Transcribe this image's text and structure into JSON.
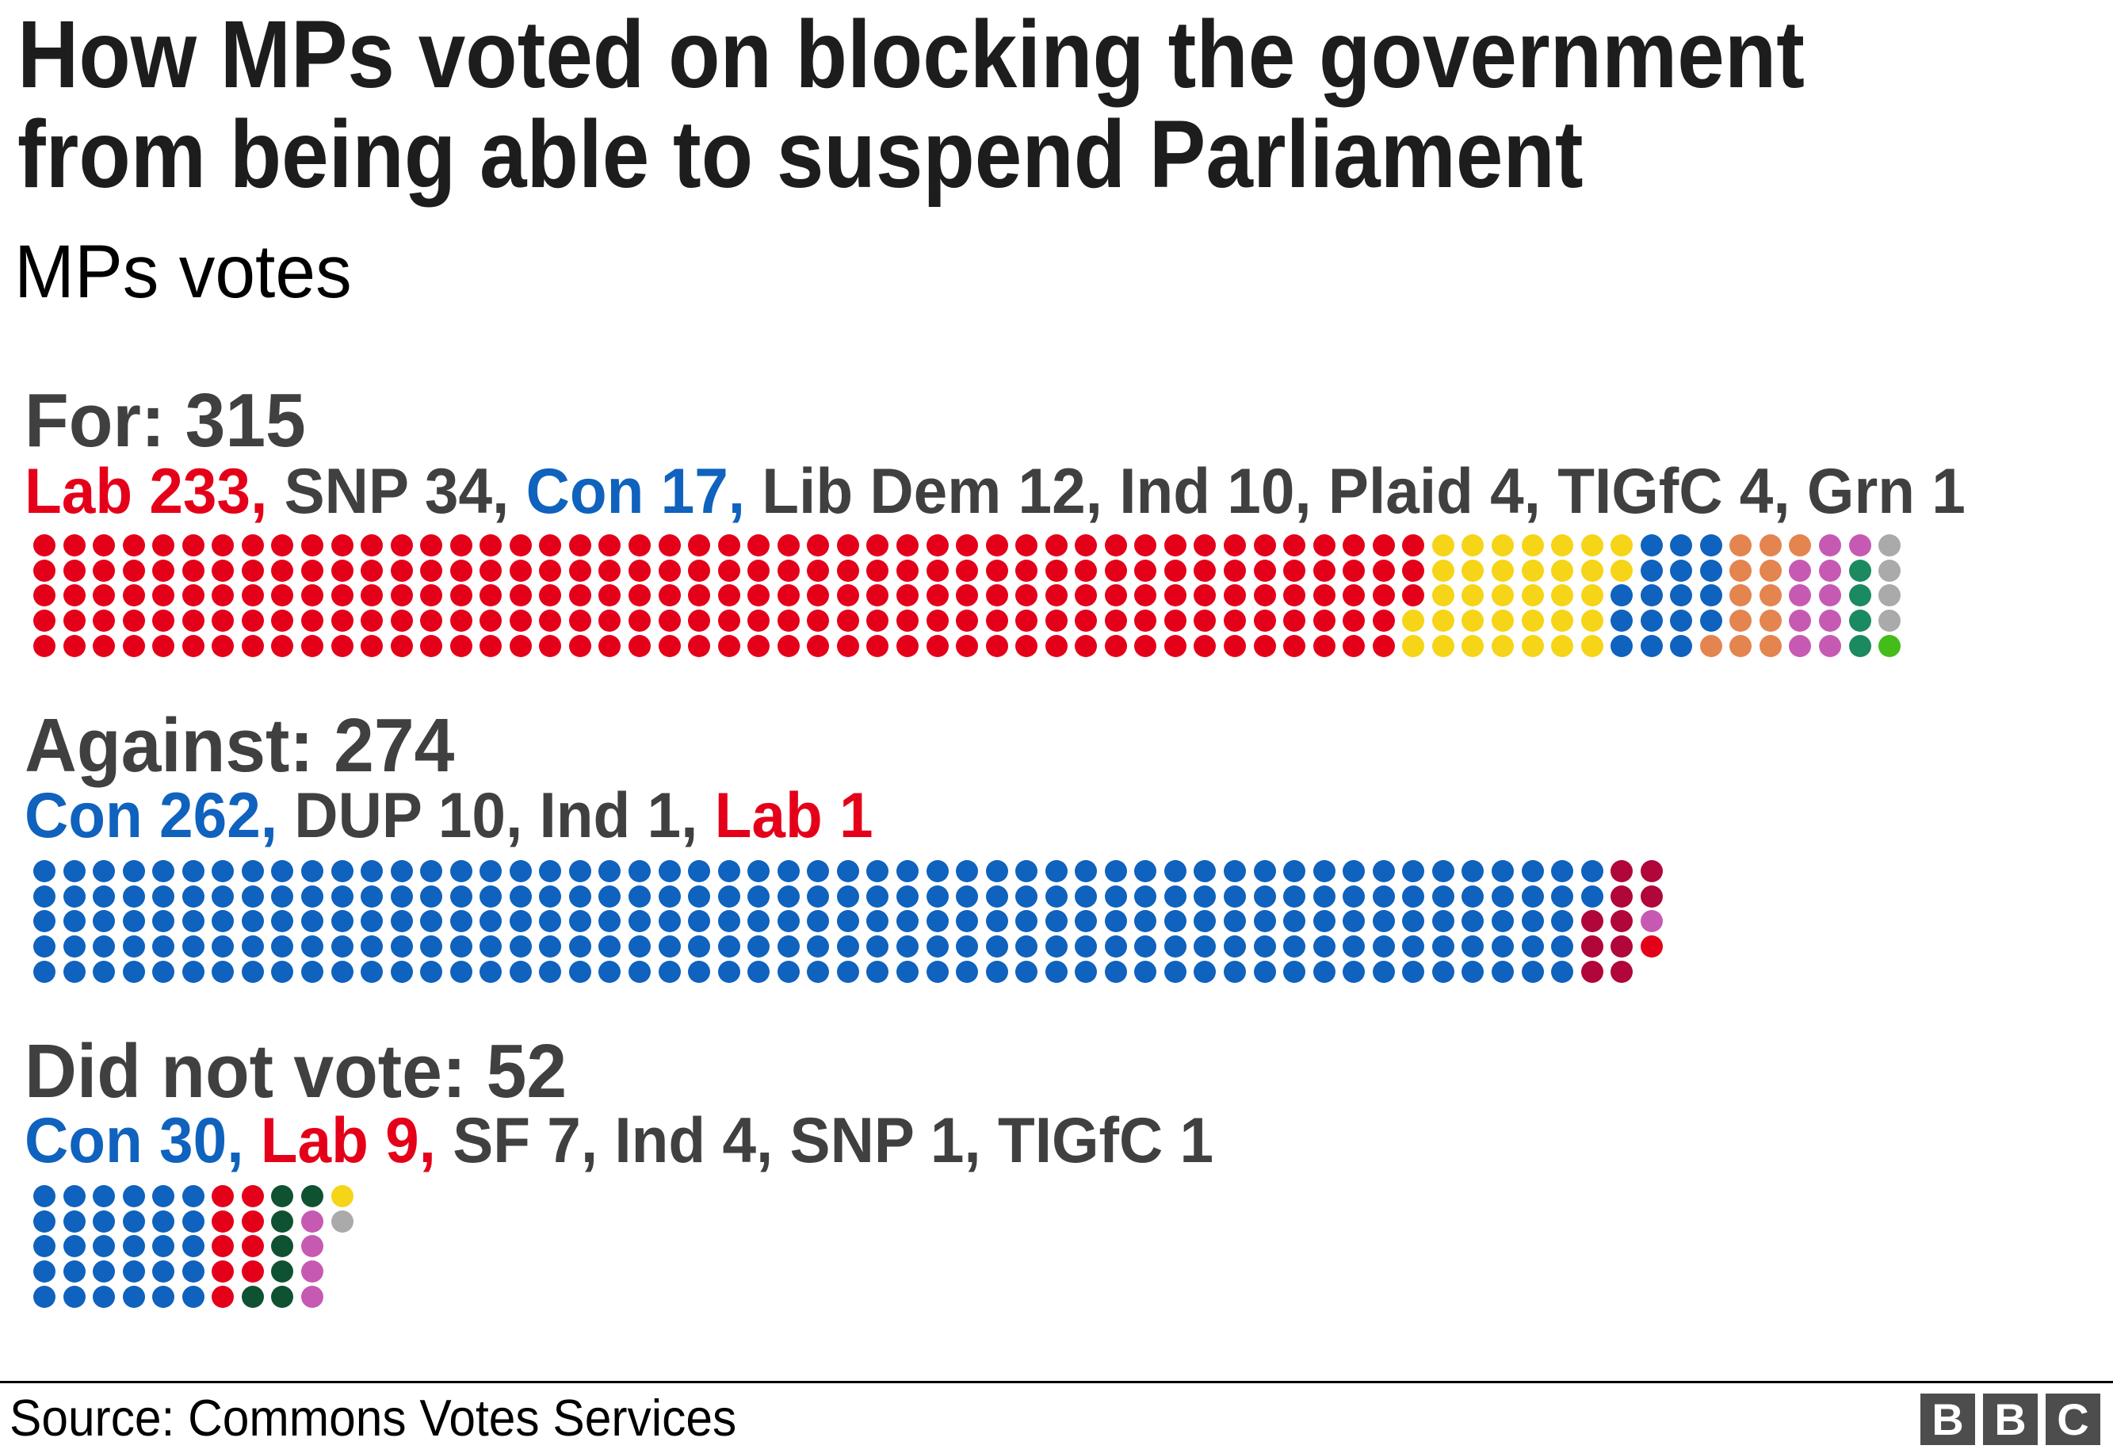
{
  "header": {
    "title_line1": "How MPs voted on blocking the government",
    "title_line2": "from being able to suspend Parliament",
    "subtitle": "MPs votes"
  },
  "footer": {
    "source": "Source: Commons Votes Services",
    "logo_letters": [
      "B",
      "B",
      "C"
    ]
  },
  "colors": {
    "Lab": "#e5001a",
    "SNP": "#f6d417",
    "Con": "#0f62bd",
    "Lib Dem": "#e4844f",
    "Ind": "#c65ab3",
    "Plaid": "#1b8a60",
    "TIGfC": "#aaaaaa",
    "Grn": "#44bc1a",
    "DUP": "#b0063a",
    "SF": "#0f5232",
    "text_default": "#404040"
  },
  "sections": [
    {
      "heading": "For: 315",
      "total": 315,
      "parties": [
        {
          "name": "Lab",
          "count": 233,
          "label": "Lab 233,",
          "colored_label": true
        },
        {
          "name": "SNP",
          "count": 34,
          "label": "SNP 34,",
          "colored_label": false
        },
        {
          "name": "Con",
          "count": 17,
          "label": "Con 17,",
          "colored_label": true
        },
        {
          "name": "Lib Dem",
          "count": 12,
          "label": "Lib Dem 12,",
          "colored_label": false
        },
        {
          "name": "Ind",
          "count": 10,
          "label": "Ind 10,",
          "colored_label": false
        },
        {
          "name": "Plaid",
          "count": 4,
          "label": "Plaid 4,",
          "colored_label": false
        },
        {
          "name": "TIGfC",
          "count": 4,
          "label": "TIGfC 4,",
          "colored_label": false
        },
        {
          "name": "Grn",
          "count": 1,
          "label": "Grn 1",
          "colored_label": false
        }
      ]
    },
    {
      "heading": "Against: 274",
      "total": 274,
      "parties": [
        {
          "name": "Con",
          "count": 262,
          "label": "Con 262,",
          "colored_label": true
        },
        {
          "name": "DUP",
          "count": 10,
          "label": "DUP 10,",
          "colored_label": false
        },
        {
          "name": "Ind",
          "count": 1,
          "label": "Ind 1,",
          "colored_label": false
        },
        {
          "name": "Lab",
          "count": 1,
          "label": "Lab 1",
          "colored_label": true
        }
      ]
    },
    {
      "heading": "Did not vote: 52",
      "total": 52,
      "parties": [
        {
          "name": "Con",
          "count": 30,
          "label": "Con 30,",
          "colored_label": true
        },
        {
          "name": "Lab",
          "count": 9,
          "label": "Lab 9,",
          "colored_label": true
        },
        {
          "name": "SF",
          "count": 7,
          "label": "SF 7,",
          "colored_label": false
        },
        {
          "name": "Ind",
          "count": 4,
          "label": "Ind 4,",
          "colored_label": false
        },
        {
          "name": "SNP",
          "count": 1,
          "label": "SNP 1,",
          "colored_label": false
        },
        {
          "name": "TIGfC",
          "count": 1,
          "label": "TIGfC 1",
          "colored_label": false
        }
      ]
    }
  ],
  "chart_data": {
    "type": "waffle",
    "title": "How MPs voted on blocking the government from being able to suspend Parliament",
    "subtitle": "MPs votes",
    "source": "Source: Commons Votes Services",
    "layout": {
      "rows_per_column": 5,
      "fill_order": "column-major, top-to-bottom",
      "one_dot_per_mp": true
    },
    "categories": [
      "For",
      "Against",
      "Did not vote"
    ],
    "totals": [
      315,
      274,
      52
    ],
    "series": [
      {
        "name": "Lab",
        "values": [
          233,
          1,
          9
        ]
      },
      {
        "name": "Con",
        "values": [
          17,
          262,
          30
        ]
      },
      {
        "name": "SNP",
        "values": [
          34,
          0,
          1
        ]
      },
      {
        "name": "Lib Dem",
        "values": [
          12,
          0,
          0
        ]
      },
      {
        "name": "Ind",
        "values": [
          10,
          1,
          4
        ]
      },
      {
        "name": "Plaid",
        "values": [
          4,
          0,
          0
        ]
      },
      {
        "name": "TIGfC",
        "values": [
          4,
          0,
          1
        ]
      },
      {
        "name": "Grn",
        "values": [
          1,
          0,
          0
        ]
      },
      {
        "name": "DUP",
        "values": [
          0,
          10,
          0
        ]
      },
      {
        "name": "SF",
        "values": [
          0,
          0,
          7
        ]
      }
    ]
  }
}
